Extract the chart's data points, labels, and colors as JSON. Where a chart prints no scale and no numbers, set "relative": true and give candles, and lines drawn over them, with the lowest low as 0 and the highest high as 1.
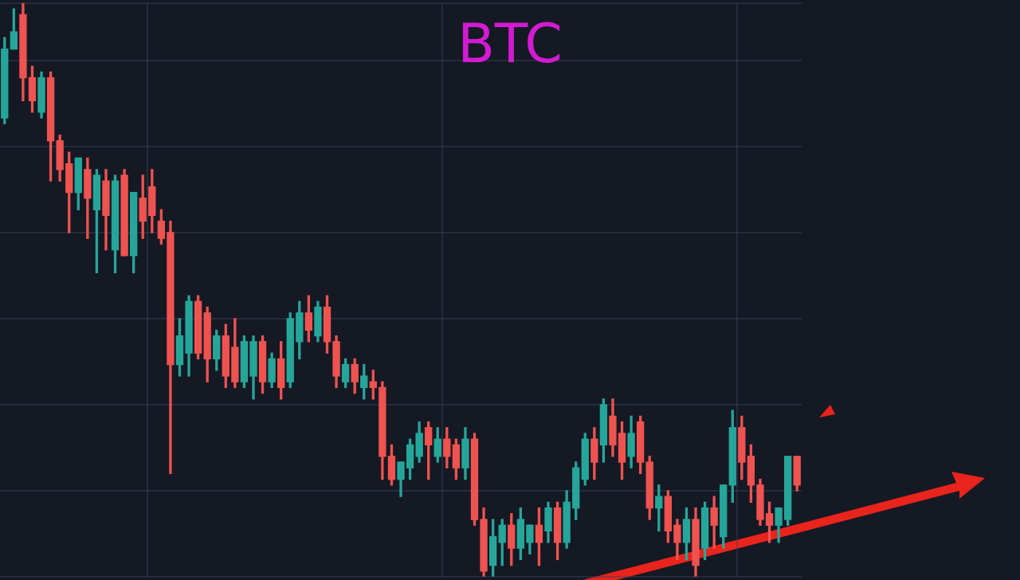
{
  "chart_data": {
    "type": "candlestick",
    "title": "BTC",
    "relative": true,
    "grid": true,
    "categories": [
      null,
      null,
      null,
      null,
      null,
      null,
      null,
      null,
      null,
      null,
      null,
      null,
      null,
      null,
      null,
      null,
      null,
      null,
      null,
      null,
      null,
      null,
      null,
      null,
      null,
      null,
      null,
      null,
      null,
      null,
      null,
      null,
      null,
      null,
      null,
      null,
      null,
      null,
      null,
      null,
      null,
      null,
      null,
      null,
      null,
      null,
      null,
      null,
      null,
      null,
      null,
      null,
      null,
      null,
      null,
      null,
      null,
      null,
      null,
      null,
      null,
      null,
      null,
      null,
      null,
      null,
      null,
      null,
      null,
      null,
      null,
      null,
      null,
      null,
      null,
      null,
      null,
      null,
      null,
      null,
      null,
      null,
      null,
      null,
      null,
      null,
      null
    ],
    "ohlc": [
      [
        0.8,
        0.94,
        0.79,
        0.92
      ],
      [
        0.92,
        0.99,
        0.92,
        0.95
      ],
      [
        0.98,
        1,
        0.83,
        0.87
      ],
      [
        0.87,
        0.89,
        0.81,
        0.83
      ],
      [
        0.81,
        0.88,
        0.8,
        0.87
      ],
      [
        0.87,
        0.88,
        0.69,
        0.76
      ],
      [
        0.76,
        0.77,
        0.69,
        0.71
      ],
      [
        0.72,
        0.74,
        0.6,
        0.67
      ],
      [
        0.67,
        0.73,
        0.64,
        0.73
      ],
      [
        0.71,
        0.73,
        0.59,
        0.66
      ],
      [
        0.64,
        0.71,
        0.53,
        0.7
      ],
      [
        0.69,
        0.71,
        0.57,
        0.63
      ],
      [
        0.57,
        0.7,
        0.53,
        0.69
      ],
      [
        0.7,
        0.71,
        0.56,
        0.56
      ],
      [
        0.56,
        0.67,
        0.53,
        0.67
      ],
      [
        0.66,
        0.7,
        0.59,
        0.62
      ],
      [
        0.68,
        0.71,
        0.6,
        0.63
      ],
      [
        0.62,
        0.64,
        0.58,
        0.59
      ],
      [
        0.6,
        0.62,
        0.18,
        0.37
      ],
      [
        0.37,
        0.45,
        0.35,
        0.42
      ],
      [
        0.39,
        0.49,
        0.35,
        0.48
      ],
      [
        0.48,
        0.49,
        0.38,
        0.39
      ],
      [
        0.46,
        0.47,
        0.34,
        0.38
      ],
      [
        0.38,
        0.43,
        0.36,
        0.42
      ],
      [
        0.42,
        0.44,
        0.33,
        0.35
      ],
      [
        0.4,
        0.45,
        0.33,
        0.34
      ],
      [
        0.34,
        0.42,
        0.33,
        0.41
      ],
      [
        0.35,
        0.42,
        0.31,
        0.41
      ],
      [
        0.41,
        0.42,
        0.32,
        0.34
      ],
      [
        0.34,
        0.39,
        0.33,
        0.38
      ],
      [
        0.38,
        0.41,
        0.31,
        0.33
      ],
      [
        0.34,
        0.46,
        0.33,
        0.45
      ],
      [
        0.41,
        0.48,
        0.38,
        0.46
      ],
      [
        0.46,
        0.49,
        0.41,
        0.43
      ],
      [
        0.42,
        0.48,
        0.41,
        0.47
      ],
      [
        0.47,
        0.49,
        0.39,
        0.41
      ],
      [
        0.41,
        0.42,
        0.33,
        0.35
      ],
      [
        0.34,
        0.38,
        0.33,
        0.37
      ],
      [
        0.37,
        0.38,
        0.32,
        0.34
      ],
      [
        0.33,
        0.37,
        0.31,
        0.35
      ],
      [
        0.34,
        0.36,
        0.31,
        0.33
      ],
      [
        0.33,
        0.34,
        0.17,
        0.21
      ],
      [
        0.21,
        0.23,
        0.16,
        0.17
      ],
      [
        0.17,
        0.2,
        0.14,
        0.2
      ],
      [
        0.19,
        0.24,
        0.17,
        0.23
      ],
      [
        0.21,
        0.27,
        0.2,
        0.25
      ],
      [
        0.26,
        0.27,
        0.17,
        0.23
      ],
      [
        0.21,
        0.26,
        0.2,
        0.24
      ],
      [
        0.24,
        0.26,
        0.19,
        0.21
      ],
      [
        0.23,
        0.24,
        0.17,
        0.19
      ],
      [
        0.19,
        0.26,
        0.17,
        0.24
      ],
      [
        0.24,
        0.25,
        0.09,
        0.1
      ],
      [
        0.1,
        0.12,
        0,
        0.01
      ],
      [
        0.02,
        0.1,
        0,
        0.07
      ],
      [
        0.06,
        0.1,
        0.02,
        0.09
      ],
      [
        0.09,
        0.11,
        0.02,
        0.05
      ],
      [
        0.05,
        0.12,
        0.03,
        0.1
      ],
      [
        0.06,
        0.09,
        0.04,
        0.09
      ],
      [
        0.09,
        0.12,
        0.02,
        0.06
      ],
      [
        0.08,
        0.13,
        0.06,
        0.12
      ],
      [
        0.12,
        0.13,
        0.03,
        0.06
      ],
      [
        0.06,
        0.15,
        0.05,
        0.13
      ],
      [
        0.12,
        0.2,
        0.1,
        0.19
      ],
      [
        0.17,
        0.25,
        0.16,
        0.24
      ],
      [
        0.24,
        0.26,
        0.17,
        0.2
      ],
      [
        0.23,
        0.31,
        0.2,
        0.3
      ],
      [
        0.28,
        0.31,
        0.21,
        0.23
      ],
      [
        0.25,
        0.27,
        0.17,
        0.2
      ],
      [
        0.21,
        0.28,
        0.19,
        0.25
      ],
      [
        0.27,
        0.28,
        0.18,
        0.2
      ],
      [
        0.2,
        0.21,
        0.1,
        0.12
      ],
      [
        0.12,
        0.16,
        0.08,
        0.14
      ],
      [
        0.14,
        0.15,
        0.06,
        0.08
      ],
      [
        0.09,
        0.1,
        0.03,
        0.06
      ],
      [
        0.06,
        0.12,
        0.03,
        0.1
      ],
      [
        0.1,
        0.12,
        0,
        0.02
      ],
      [
        0.05,
        0.13,
        0.03,
        0.12
      ],
      [
        0.12,
        0.14,
        0.05,
        0.09
      ],
      [
        0.07,
        0.16,
        0.05,
        0.16
      ],
      [
        0.16,
        0.29,
        0.13,
        0.26
      ],
      [
        0.26,
        0.28,
        0.17,
        0.2
      ],
      [
        0.21,
        0.23,
        0.13,
        0.16
      ],
      [
        0.16,
        0.17,
        0.09,
        0.1
      ],
      [
        0.11,
        0.13,
        0.06,
        0.09
      ],
      [
        0.09,
        0.12,
        0.06,
        0.12
      ],
      [
        0.1,
        0.21,
        0.09,
        0.21
      ],
      [
        0.21,
        0.21,
        0.15,
        0.16
      ]
    ],
    "colors": [
      "#26a69a",
      "#26a69a",
      "#ef5350",
      "#ef5350",
      "#26a69a",
      "#ef5350",
      "#ef5350",
      "#ef5350",
      "#26a69a",
      "#ef5350",
      "#26a69a",
      "#ef5350",
      "#26a69a",
      "#ef5350",
      "#26a69a",
      "#ef5350",
      "#ef5350",
      "#ef5350",
      "#ef5350",
      "#26a69a",
      "#26a69a",
      "#ef5350",
      "#ef5350",
      "#26a69a",
      "#ef5350",
      "#ef5350",
      "#26a69a",
      "#26a69a",
      "#ef5350",
      "#26a69a",
      "#ef5350",
      "#26a69a",
      "#26a69a",
      "#ef5350",
      "#26a69a",
      "#ef5350",
      "#ef5350",
      "#26a69a",
      "#ef5350",
      "#26a69a",
      "#ef5350",
      "#ef5350",
      "#ef5350",
      "#26a69a",
      "#26a69a",
      "#26a69a",
      "#ef5350",
      "#26a69a",
      "#ef5350",
      "#ef5350",
      "#26a69a",
      "#ef5350",
      "#ef5350",
      "#26a69a",
      "#26a69a",
      "#ef5350",
      "#26a69a",
      "#26a69a",
      "#ef5350",
      "#26a69a",
      "#ef5350",
      "#26a69a",
      "#26a69a",
      "#26a69a",
      "#ef5350",
      "#26a69a",
      "#ef5350",
      "#ef5350",
      "#26a69a",
      "#ef5350",
      "#ef5350",
      "#26a69a",
      "#ef5350",
      "#ef5350",
      "#26a69a",
      "#ef5350",
      "#26a69a",
      "#ef5350",
      "#26a69a",
      "#26a69a",
      "#ef5350",
      "#ef5350",
      "#ef5350",
      "#ef5350",
      "#26a69a",
      "#26a69a",
      "#ef5350"
    ]
  }
}
